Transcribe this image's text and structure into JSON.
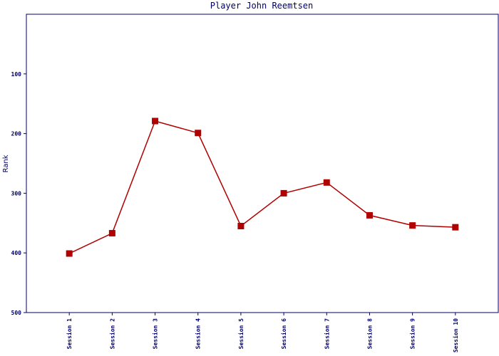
{
  "chart_data": {
    "type": "line",
    "title": "Player John Reemtsen",
    "y_label": "Rank",
    "categories": [
      "Session 1",
      "Session 2",
      "Session 3",
      "Session 4",
      "Session 5",
      "Session 6",
      "Session 7",
      "Session 8",
      "Session 9",
      "Session 10"
    ],
    "values": [
      401,
      367,
      179,
      199,
      355,
      300,
      282,
      337,
      354,
      357
    ],
    "color": "#b00000",
    "ylim": [
      0,
      500
    ],
    "y_inverted": true,
    "yticks": [
      100,
      200,
      300,
      400,
      500
    ]
  }
}
